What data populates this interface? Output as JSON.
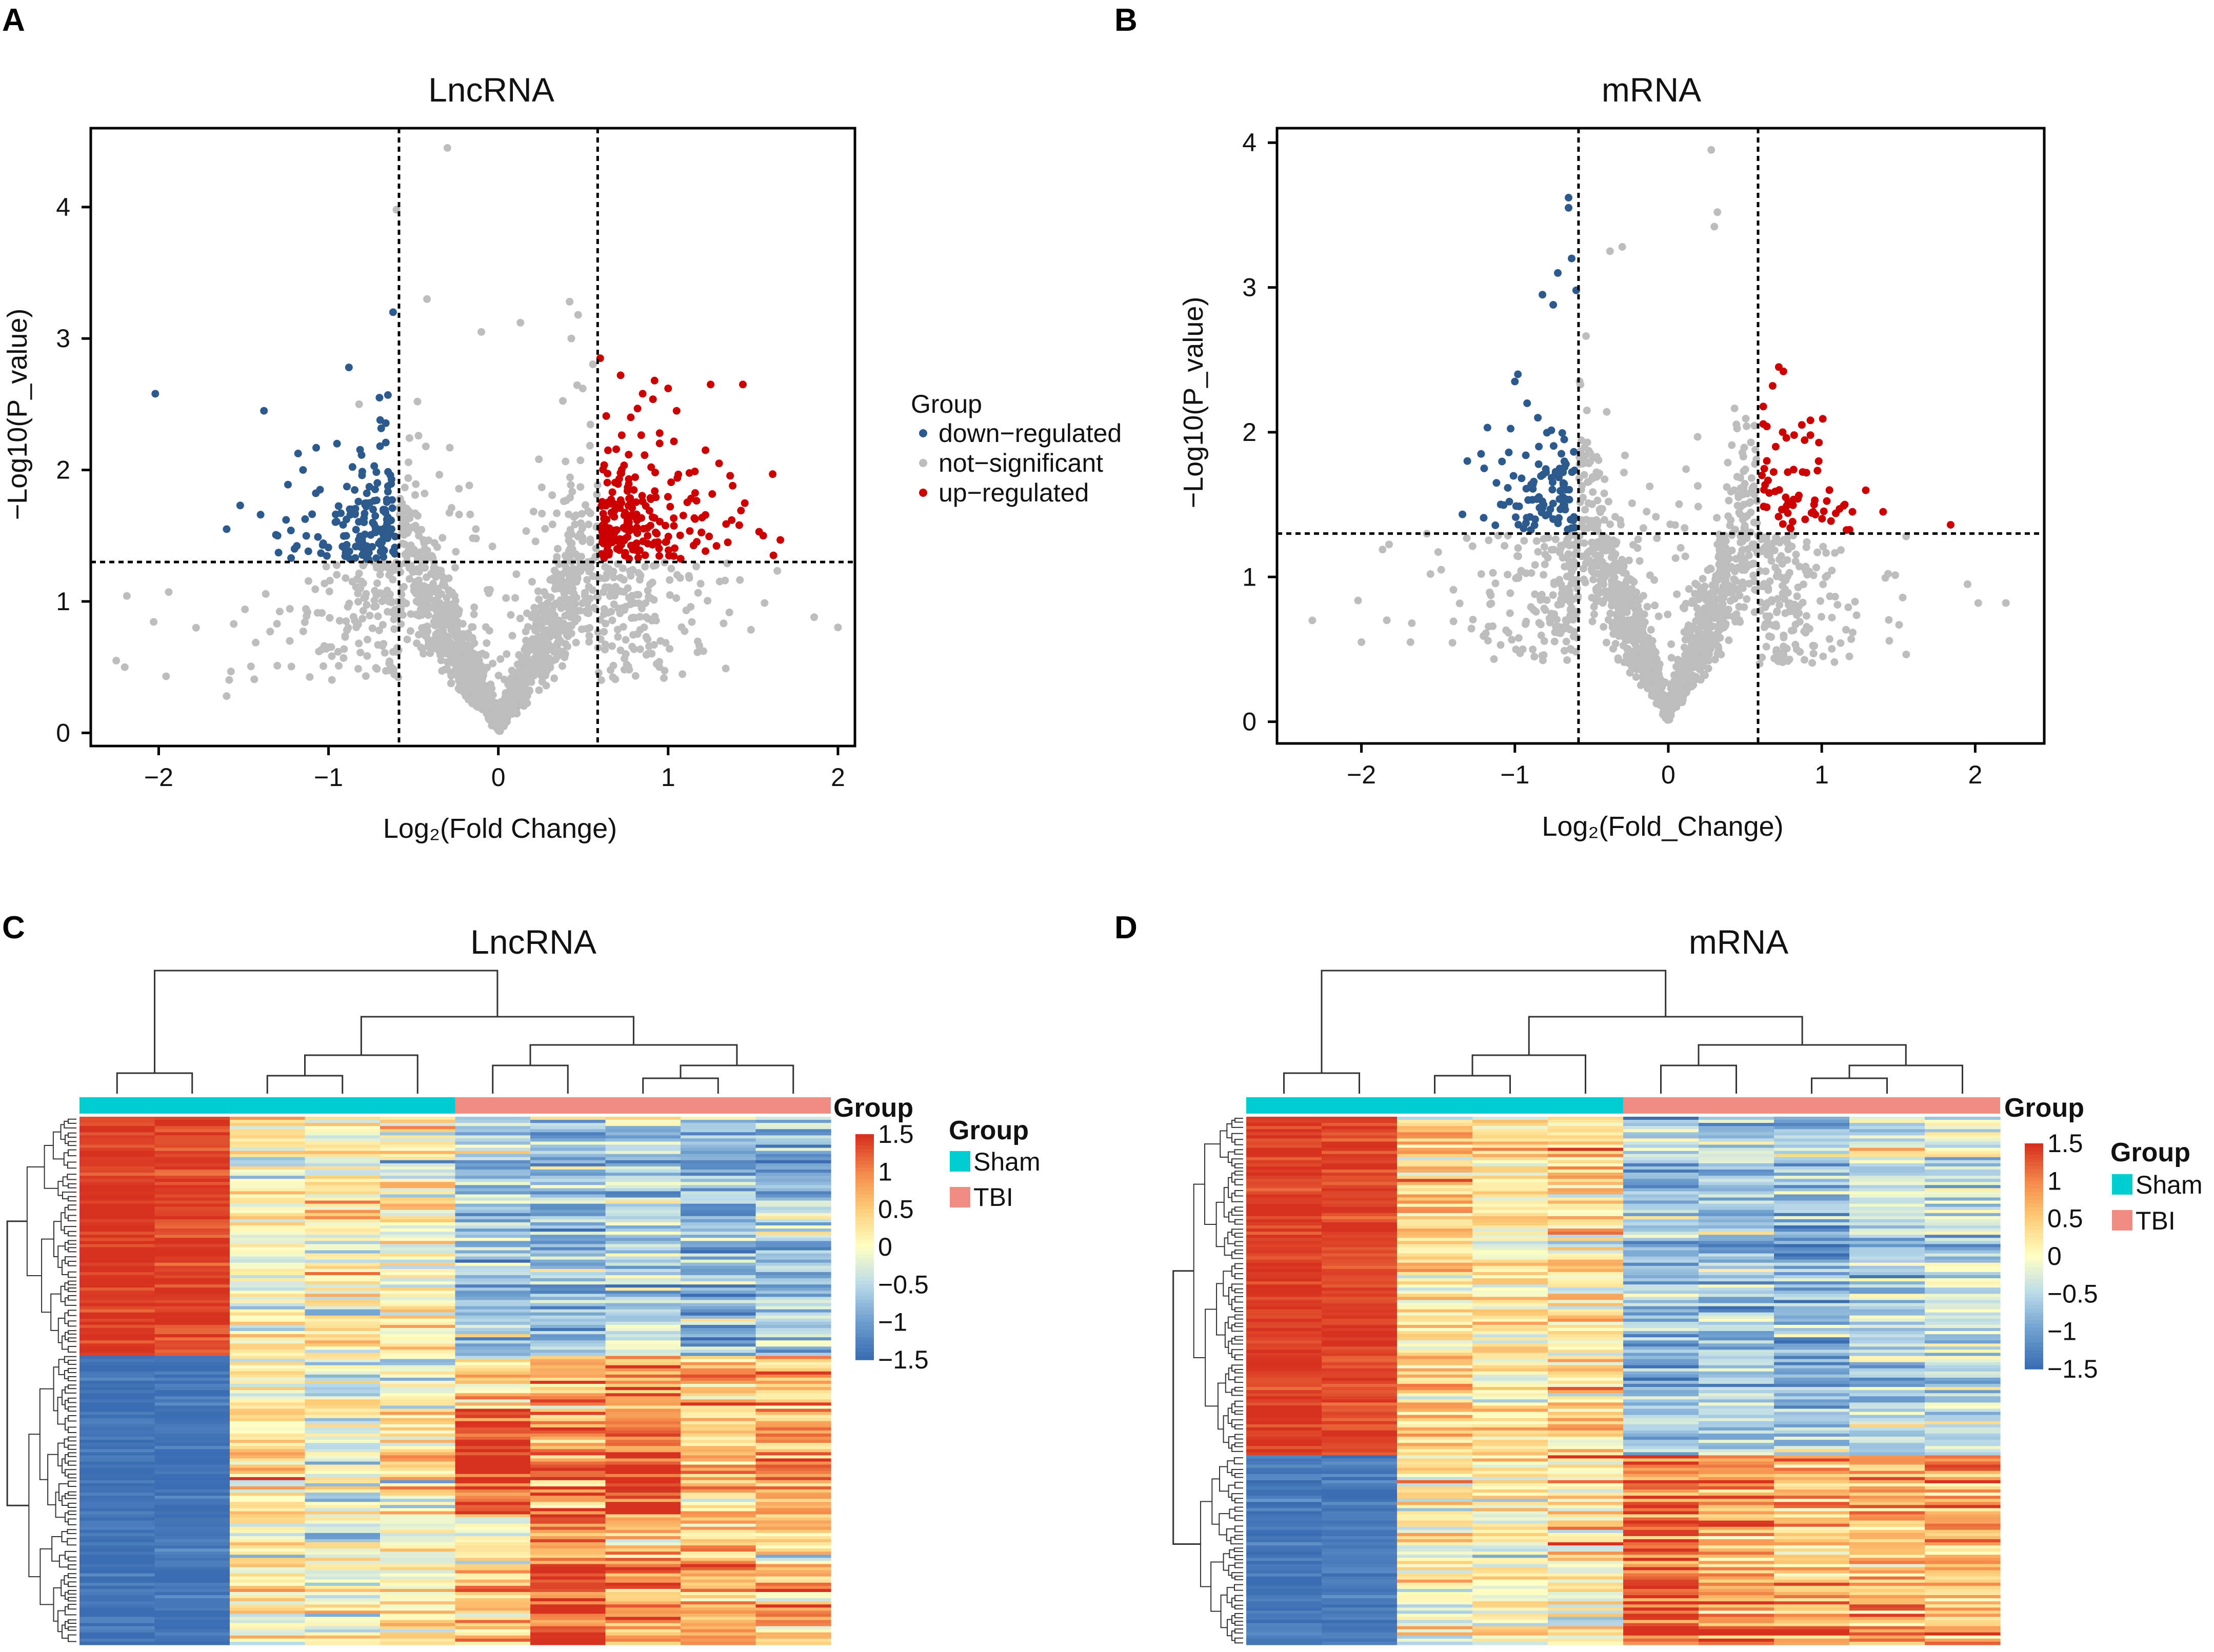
{
  "panels": {
    "A": "A",
    "B": "B",
    "C": "C",
    "D": "D"
  },
  "colors": {
    "down": "#2d5a8c",
    "ns": "#bdbdbd",
    "up": "#cc0000",
    "sham": "#00ced1",
    "tbi": "#f08c84",
    "heat_low": "#4575b4",
    "heat_mid": "#ffffbf",
    "heat_high": "#d73027"
  },
  "chart_data": [
    {
      "id": "A",
      "type": "scatter",
      "title": "LncRNA",
      "xlabel": "Log₂(Fold Change)",
      "ylabel": "−Log10(P_value)",
      "xlim": [
        -2.4,
        2.1
      ],
      "ylim": [
        -0.1,
        4.6
      ],
      "xticks": [
        -2,
        -1,
        0,
        1,
        2
      ],
      "yticks": [
        0,
        1,
        2,
        3,
        4
      ],
      "xtick_labels": [
        "−2",
        "−1",
        "0",
        "1",
        "2"
      ],
      "ytick_labels": [
        "0",
        "1",
        "2",
        "3",
        "4"
      ],
      "fc_threshold": 0.585,
      "p_threshold": 1.3,
      "seed": 11,
      "n_ns": 1500,
      "legend": {
        "title": "Group",
        "entries": [
          "down−regulated",
          "not−significant",
          "up−regulated"
        ]
      },
      "highlight_points": {
        "down": [
          [
            -2.02,
            2.58
          ],
          [
            -1.38,
            2.45
          ],
          [
            -1.52,
            1.73
          ],
          [
            -1.4,
            1.66
          ],
          [
            -1.6,
            1.55
          ],
          [
            -1.25,
            1.62
          ],
          [
            -0.95,
            2.2
          ],
          [
            -0.88,
            2.78
          ],
          [
            -0.7,
            2.55
          ],
          [
            -0.65,
            2.57
          ],
          [
            -0.62,
            3.2
          ],
          [
            -1.15,
            2.0
          ],
          [
            -1.2,
            1.4
          ],
          [
            -1.3,
            1.5
          ],
          [
            -1.05,
            1.85
          ]
        ],
        "up": [
          [
            0.6,
            2.85
          ],
          [
            0.72,
            2.72
          ],
          [
            0.85,
            2.58
          ],
          [
            0.92,
            2.68
          ],
          [
            1.0,
            2.62
          ],
          [
            1.05,
            2.45
          ],
          [
            1.25,
            2.65
          ],
          [
            1.44,
            2.65
          ],
          [
            1.22,
            2.15
          ],
          [
            1.3,
            2.05
          ],
          [
            1.38,
            1.88
          ],
          [
            1.56,
            1.5
          ],
          [
            1.62,
            1.35
          ],
          [
            0.78,
            2.4
          ],
          [
            0.95,
            2.28
          ]
        ],
        "ns": [
          [
            -0.3,
            4.45
          ],
          [
            -0.6,
            3.98
          ],
          [
            -0.42,
            3.3
          ],
          [
            -0.1,
            3.05
          ],
          [
            0.42,
            3.28
          ],
          [
            0.47,
            3.18
          ],
          [
            0.43,
            3.0
          ],
          [
            1.86,
            0.88
          ],
          [
            -2.2,
            0.5
          ],
          [
            -2.25,
            0.55
          ],
          [
            -1.78,
            0.8
          ],
          [
            -1.6,
            0.28
          ],
          [
            0.13,
            3.12
          ],
          [
            -0.82,
            2.5
          ]
        ]
      },
      "n_down_extra": 140,
      "n_up_extra": 210
    },
    {
      "id": "B",
      "type": "scatter",
      "title": "mRNA",
      "xlabel": "Log₂(Fold_Change)",
      "ylabel": "−Log10(P_value)",
      "xlim": [
        -2.55,
        2.45
      ],
      "ylim": [
        -0.15,
        4.1
      ],
      "xticks": [
        -2,
        -1,
        0,
        1,
        2
      ],
      "yticks": [
        0,
        1,
        2,
        3,
        4
      ],
      "xtick_labels": [
        "−2",
        "−1",
        "0",
        "1",
        "2"
      ],
      "ytick_labels": [
        "0",
        "1",
        "2",
        "3",
        "4"
      ],
      "fc_threshold": 0.585,
      "p_threshold": 1.3,
      "seed": 29,
      "n_ns": 1500,
      "legend": null,
      "highlight_points": {
        "down": [
          [
            -0.65,
            3.62
          ],
          [
            -0.65,
            3.55
          ],
          [
            -0.63,
            3.2
          ],
          [
            -0.72,
            3.1
          ],
          [
            -0.82,
            2.95
          ],
          [
            -0.75,
            2.88
          ],
          [
            -0.6,
            2.98
          ],
          [
            -0.98,
            2.4
          ],
          [
            -1.0,
            2.35
          ],
          [
            -1.22,
            1.85
          ],
          [
            -1.2,
            1.75
          ],
          [
            -1.12,
            1.65
          ],
          [
            -0.92,
            2.2
          ],
          [
            -0.85,
            2.1
          ]
        ],
        "up": [
          [
            0.72,
            2.45
          ],
          [
            0.75,
            2.42
          ],
          [
            0.68,
            2.32
          ],
          [
            0.87,
            2.05
          ],
          [
            0.82,
            1.98
          ],
          [
            0.98,
            1.8
          ],
          [
            1.05,
            1.6
          ],
          [
            1.15,
            1.5
          ],
          [
            1.2,
            1.45
          ],
          [
            1.4,
            1.45
          ],
          [
            1.84,
            1.36
          ],
          [
            0.9,
            1.72
          ],
          [
            0.7,
            1.9
          ],
          [
            0.95,
            1.5
          ]
        ],
        "ns": [
          [
            0.28,
            3.95
          ],
          [
            0.32,
            3.52
          ],
          [
            0.3,
            3.42
          ],
          [
            -0.3,
            3.28
          ],
          [
            -0.38,
            3.25
          ],
          [
            -2.32,
            0.7
          ],
          [
            -2.0,
            0.55
          ],
          [
            -1.68,
            0.55
          ],
          [
            2.2,
            0.82
          ],
          [
            2.02,
            0.82
          ],
          [
            1.95,
            0.95
          ],
          [
            -1.48,
            1.05
          ],
          [
            -1.55,
            1.02
          ],
          [
            1.55,
            1.28
          ]
        ]
      },
      "n_down_extra": 95,
      "n_up_extra": 55
    },
    {
      "id": "C",
      "type": "heatmap",
      "title": "LncRNA",
      "group_label": "Group",
      "columns": 10,
      "rows": 170,
      "sham_cols": 5,
      "seed": 7,
      "legend_ticks": [
        "1.5",
        "1",
        "0.5",
        "0",
        "−0.5",
        "−1",
        "−1.5"
      ],
      "legend_title": "Group",
      "legend_groups": [
        "Sham",
        "TBI"
      ],
      "blocks": [
        {
          "rows": 0.45,
          "means": [
            1.45,
            1.4,
            0.05,
            0.05,
            0.1,
            -0.7,
            -0.75,
            -0.5,
            -0.8,
            -0.7
          ]
        },
        {
          "rows": 0.1,
          "means": [
            -1.45,
            -1.4,
            0.1,
            -0.1,
            0.0,
            0.6,
            0.8,
            0.9,
            0.7,
            0.8
          ]
        },
        {
          "rows": 0.2,
          "means": [
            -1.45,
            -1.4,
            0.3,
            0.0,
            0.3,
            1.4,
            1.0,
            1.2,
            0.5,
            0.8
          ]
        },
        {
          "rows": 0.25,
          "means": [
            -1.45,
            -1.4,
            0.2,
            0.0,
            0.1,
            0.5,
            1.2,
            0.8,
            0.7,
            0.6
          ]
        }
      ]
    },
    {
      "id": "D",
      "type": "heatmap",
      "title": "mRNA",
      "group_label": "Group",
      "columns": 10,
      "rows": 170,
      "sham_cols": 5,
      "seed": 19,
      "legend_ticks": [
        "1.5",
        "1",
        "0.5",
        "0",
        "−0.5",
        "−1",
        "−1.5"
      ],
      "legend_title": "Group",
      "legend_groups": [
        "Sham",
        "TBI"
      ],
      "blocks": [
        {
          "rows": 0.64,
          "means": [
            1.45,
            1.4,
            0.4,
            0.2,
            0.3,
            -0.7,
            -0.6,
            -0.8,
            -0.5,
            -0.4
          ]
        },
        {
          "rows": 0.36,
          "means": [
            -1.4,
            -1.4,
            0.2,
            0.1,
            0.2,
            1.2,
            0.9,
            0.6,
            0.7,
            0.8
          ]
        }
      ]
    }
  ]
}
